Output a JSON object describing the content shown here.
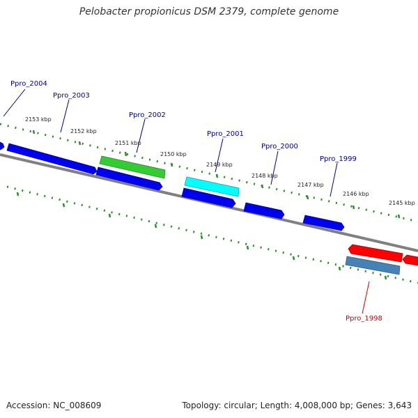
{
  "title": "Pelobacter propionicus DSM 2379, complete genome",
  "footer": {
    "accession": "Accession: NC_008609",
    "summary": "Topology: circular; Length: 4,008,000 bp; Genes: 3,643"
  },
  "colors": {
    "backbone": "#808080",
    "tick": "#2e8b2e",
    "label_default": "#00008b",
    "label_red": "#cc0000",
    "gene_blue": "#0000ee",
    "gene_green": "#33cc33",
    "gene_cyan": "#00ffff",
    "gene_red": "#ff0000",
    "gene_steel": "#4682b4"
  },
  "ticks": [
    "2153 kbp",
    "2152 kbp",
    "2151 kbp",
    "2150 kbp",
    "2149 kbp",
    "2148 kbp",
    "2147 kbp",
    "2146 kbp",
    "2145 kbp"
  ],
  "gene_labels": [
    "Ppro_2004",
    "Ppro_2003",
    "Ppro_2002",
    "Ppro_2001",
    "Ppro_2000",
    "Ppro_1999",
    "Ppro_1998"
  ]
}
